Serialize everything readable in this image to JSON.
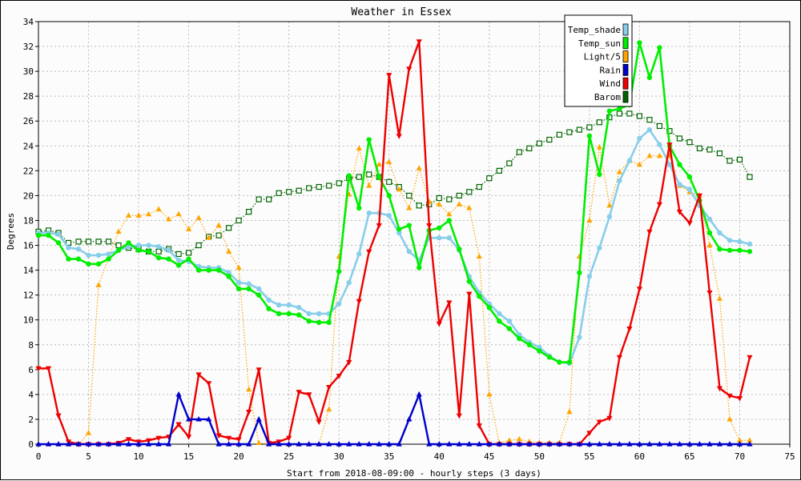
{
  "chart_data": {
    "type": "line",
    "title": "Weather in Essex",
    "xlabel": "Start from 2018-08-09:00 - hourly steps (3 days)",
    "ylabel": "Degrees",
    "xlim": [
      0,
      75
    ],
    "ylim": [
      0,
      34
    ],
    "x_ticks": [
      0,
      5,
      10,
      15,
      20,
      25,
      30,
      35,
      40,
      45,
      50,
      55,
      60,
      65,
      70,
      75
    ],
    "y_ticks": [
      0,
      2,
      4,
      6,
      8,
      10,
      12,
      14,
      16,
      18,
      20,
      22,
      24,
      26,
      28,
      30,
      32,
      34
    ],
    "grid": true,
    "legend_position": "top-right",
    "x": [
      0,
      1,
      2,
      3,
      4,
      5,
      6,
      7,
      8,
      9,
      10,
      11,
      12,
      13,
      14,
      15,
      16,
      17,
      18,
      19,
      20,
      21,
      22,
      23,
      24,
      25,
      26,
      27,
      28,
      29,
      30,
      31,
      32,
      33,
      34,
      35,
      36,
      37,
      38,
      39,
      40,
      41,
      42,
      43,
      44,
      45,
      46,
      47,
      48,
      49,
      50,
      51,
      52,
      53,
      54,
      55,
      56,
      57,
      58,
      59,
      60,
      61,
      62,
      63,
      64,
      65,
      66,
      67,
      68,
      69,
      70,
      71
    ],
    "series": [
      {
        "name": "Temp_shade",
        "color": "#87ceeb",
        "marker": "circle",
        "line": "solid",
        "values": [
          17.0,
          17.0,
          16.9,
          15.8,
          15.7,
          15.2,
          15.2,
          15.3,
          15.6,
          15.9,
          16.0,
          16.0,
          15.9,
          15.6,
          14.8,
          14.7,
          14.3,
          14.2,
          14.2,
          13.8,
          13.0,
          12.9,
          12.5,
          11.6,
          11.2,
          11.2,
          11.0,
          10.5,
          10.5,
          10.5,
          11.3,
          13.0,
          15.3,
          18.6,
          18.6,
          18.4,
          17.0,
          15.5,
          14.8,
          16.6,
          16.6,
          16.6,
          15.6,
          13.5,
          12.2,
          11.3,
          10.5,
          9.9,
          8.8,
          8.2,
          7.8,
          7.1,
          6.6,
          6.5,
          8.6,
          13.5,
          15.8,
          18.3,
          21.2,
          22.8,
          24.6,
          25.3,
          24.1,
          22.5,
          20.9,
          20.5,
          19.2,
          18.1,
          17.0,
          16.4,
          16.3,
          16.1
        ]
      },
      {
        "name": "Temp_sun",
        "color": "#00ee00",
        "marker": "circle",
        "line": "solid",
        "values": [
          16.8,
          16.8,
          16.2,
          14.9,
          14.9,
          14.5,
          14.5,
          14.9,
          15.6,
          16.2,
          15.6,
          15.5,
          15.0,
          14.9,
          14.4,
          14.9,
          14.0,
          14.0,
          14.0,
          13.5,
          12.5,
          12.5,
          12.0,
          10.9,
          10.5,
          10.5,
          10.4,
          9.9,
          9.8,
          9.8,
          13.9,
          21.6,
          19.0,
          24.5,
          21.5,
          20.0,
          17.3,
          17.6,
          14.2,
          17.2,
          17.4,
          18.0,
          15.7,
          13.1,
          11.9,
          11.0,
          9.9,
          9.3,
          8.5,
          8.0,
          7.5,
          7.0,
          6.6,
          6.6,
          13.8,
          24.8,
          21.7,
          26.8,
          27.0,
          27.3,
          32.3,
          29.5,
          31.9,
          24.0,
          22.5,
          21.5,
          19.6,
          17.0,
          15.7,
          15.6,
          15.6,
          15.5
        ]
      },
      {
        "name": "Light/5",
        "color": "#ffa500",
        "marker": "triangle-up",
        "line": "dotted",
        "values": [
          0,
          0,
          0,
          0,
          0,
          0.9,
          12.8,
          15.0,
          17.1,
          18.4,
          18.4,
          18.5,
          18.9,
          18.1,
          18.5,
          17.3,
          18.2,
          16.6,
          17.6,
          15.5,
          14.2,
          4.4,
          0.1,
          0,
          0,
          0,
          0,
          0,
          0,
          2.8,
          15.1,
          20.1,
          23.8,
          20.8,
          22.5,
          22.7,
          20.5,
          19.0,
          22.2,
          19.5,
          19.3,
          18.5,
          19.3,
          19.0,
          15.1,
          4.0,
          0.1,
          0.3,
          0.4,
          0.2,
          0.1,
          0.1,
          0.1,
          2.6,
          15.1,
          18.0,
          23.9,
          19.2,
          21.9,
          22.8,
          22.5,
          23.2,
          23.2,
          23.2,
          20.8,
          20.3,
          20.0,
          16.0,
          11.7,
          2.0,
          0.3,
          0.3
        ]
      },
      {
        "name": "Rain",
        "color": "#0000cc",
        "marker": "triangle-up",
        "line": "solid",
        "values": [
          0,
          0,
          0,
          0,
          0,
          0,
          0,
          0,
          0,
          0,
          0,
          0,
          0,
          0,
          4.0,
          2.0,
          2.0,
          2.0,
          0,
          0,
          0,
          0,
          2.0,
          0,
          0,
          0,
          0,
          0,
          0,
          0,
          0,
          0,
          0,
          0,
          0,
          0,
          0,
          2.0,
          4.0,
          0,
          0,
          0,
          0,
          0,
          0,
          0,
          0,
          0,
          0,
          0,
          0,
          0,
          0,
          0,
          0,
          0,
          0,
          0,
          0,
          0,
          0,
          0,
          0,
          0,
          0,
          0,
          0,
          0,
          0,
          0,
          0,
          0
        ]
      },
      {
        "name": "Wind",
        "color": "#ee0000",
        "marker": "triangle-down",
        "line": "solid",
        "values": [
          6.1,
          6.1,
          2.3,
          0.2,
          0,
          0,
          0,
          0,
          0.1,
          0.4,
          0.2,
          0.3,
          0.5,
          0.6,
          1.6,
          0.6,
          5.6,
          4.9,
          0.7,
          0.5,
          0.4,
          2.6,
          6.0,
          0.1,
          0.2,
          0.5,
          4.2,
          4.0,
          1.8,
          4.6,
          5.5,
          6.6,
          11.5,
          15.5,
          17.6,
          29.7,
          24.8,
          30.2,
          32.4,
          17.6,
          9.7,
          11.4,
          2.3,
          12.1,
          1.5,
          0,
          0,
          0,
          0,
          0,
          0,
          0,
          0,
          0,
          0,
          0.9,
          1.8,
          2.1,
          7.0,
          9.3,
          12.5,
          17.1,
          19.3,
          24.1,
          18.7,
          17.8,
          20.0,
          12.2,
          4.5,
          3.9,
          3.7,
          7.0
        ]
      },
      {
        "name": "Barom",
        "color": "#006400",
        "marker": "square-open",
        "line": "dotted",
        "values": [
          17.1,
          17.2,
          17.0,
          16.2,
          16.3,
          16.3,
          16.3,
          16.3,
          16.0,
          15.8,
          15.7,
          15.5,
          15.5,
          15.7,
          15.3,
          15.4,
          16.0,
          16.7,
          16.8,
          17.4,
          18.0,
          18.7,
          19.7,
          19.7,
          20.2,
          20.3,
          20.4,
          20.6,
          20.7,
          20.8,
          21.0,
          21.4,
          21.5,
          21.7,
          21.5,
          21.1,
          20.7,
          20.0,
          19.2,
          19.3,
          19.8,
          19.7,
          20.0,
          20.3,
          20.7,
          21.4,
          22.0,
          22.6,
          23.5,
          23.8,
          24.2,
          24.5,
          24.9,
          25.1,
          25.3,
          25.5,
          25.9,
          26.3,
          26.6,
          26.6,
          26.4,
          26.1,
          25.6,
          25.2,
          24.6,
          24.3,
          23.8,
          23.7,
          23.4,
          22.8,
          22.9,
          21.5
        ]
      }
    ]
  }
}
